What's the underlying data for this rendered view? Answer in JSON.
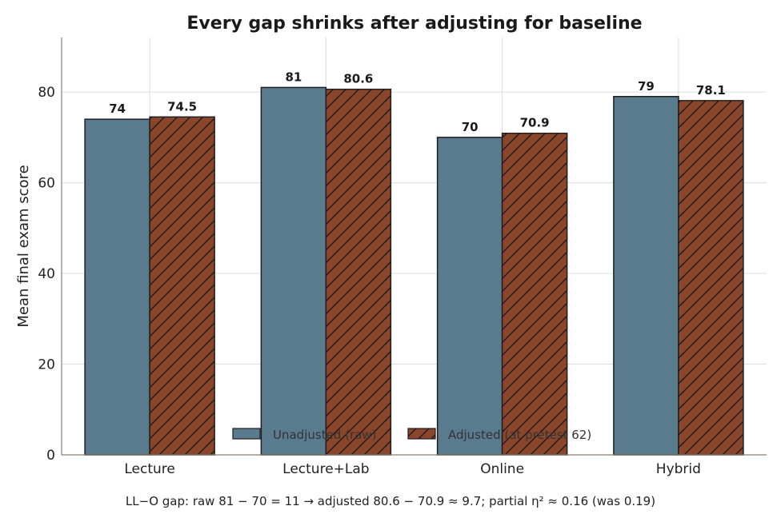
{
  "chart_data": {
    "type": "bar",
    "title": "Every gap shrinks after adjusting for baseline",
    "xlabel": "",
    "ylabel": "Mean final exam score",
    "categories": [
      "Lecture",
      "Lecture+Lab",
      "Online",
      "Hybrid"
    ],
    "series": [
      {
        "name": "Unadjusted (raw)",
        "values": [
          74,
          81,
          70,
          79
        ],
        "labels": [
          "74",
          "81",
          "70",
          "79"
        ],
        "color": "#5a7a8e",
        "pattern": "solid"
      },
      {
        "name": "Adjusted (at pretest 62)",
        "values": [
          74.5,
          80.6,
          70.9,
          78.1
        ],
        "labels": [
          "74.5",
          "80.6",
          "70.9",
          "78.1"
        ],
        "color": "#8b452a",
        "pattern": "diagonal-hatch"
      }
    ],
    "ylim": [
      0,
      92
    ],
    "yticks": [
      0,
      20,
      40,
      60,
      80
    ],
    "grid": true,
    "legend_position": "bottom-center"
  },
  "footnote": "LL−O gap: raw 81 − 70 = 11 → adjusted 80.6 − 70.9 ≈ 9.7; partial η² ≈ 0.16 (was 0.19)"
}
